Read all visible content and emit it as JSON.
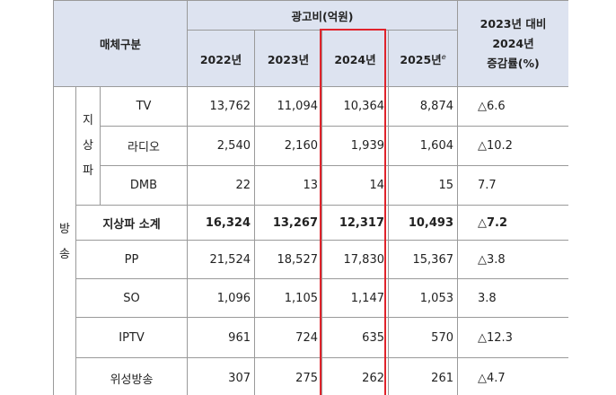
{
  "header": {
    "media_category": "매체구분",
    "ad_spend": "광고비(억원)",
    "years": [
      "2022년",
      "2023년",
      "2024년",
      "2025년"
    ],
    "estimate_mark": "e",
    "rate_lines": [
      "2023년 대비",
      "2024년",
      "증감률(%)"
    ]
  },
  "groups": {
    "broadcast": [
      "방",
      "송"
    ],
    "terrestrial": [
      "지",
      "상",
      "파"
    ]
  },
  "rows": [
    {
      "label": "TV",
      "v2022": "13,762",
      "v2023": "11,094",
      "v2024": "10,364",
      "v2025": "8,874",
      "rate": "△6.6"
    },
    {
      "label": "라디오",
      "v2022": "2,540",
      "v2023": "2,160",
      "v2024": "1,939",
      "v2025": "1,604",
      "rate": "△10.2"
    },
    {
      "label": "DMB",
      "v2022": "22",
      "v2023": "13",
      "v2024": "14",
      "v2025": "15",
      "rate": "7.7"
    },
    {
      "label": "지상파 소계",
      "v2022": "16,324",
      "v2023": "13,267",
      "v2024": "12,317",
      "v2025": "10,493",
      "rate": "△7.2"
    },
    {
      "label": "PP",
      "v2022": "21,524",
      "v2023": "18,527",
      "v2024": "17,830",
      "v2025": "15,367",
      "rate": "△3.8"
    },
    {
      "label": "SO",
      "v2022": "1,096",
      "v2023": "1,105",
      "v2024": "1,147",
      "v2025": "1,053",
      "rate": "3.8"
    },
    {
      "label": "IPTV",
      "v2022": "961",
      "v2023": "724",
      "v2024": "635",
      "v2025": "570",
      "rate": "△12.3"
    },
    {
      "label": "위성방송",
      "v2022": "307",
      "v2023": "275",
      "v2024": "262",
      "v2025": "261",
      "rate": "△4.7"
    }
  ],
  "colors": {
    "header_bg": "#dde3f0",
    "highlight_border": "#e0232b",
    "grid": "#9a9a9a"
  }
}
